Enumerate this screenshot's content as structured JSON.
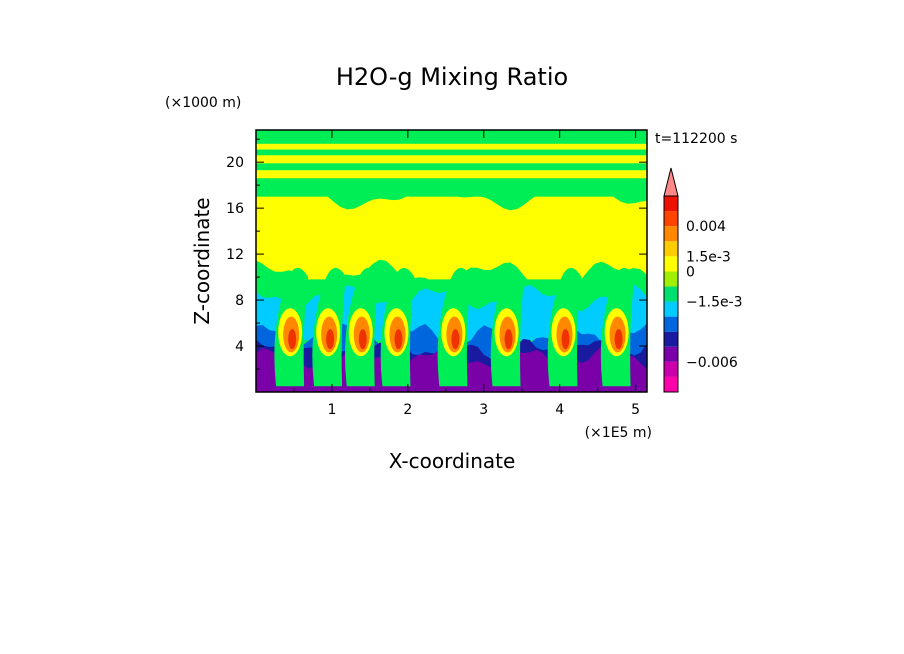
{
  "chart_data": {
    "type": "heatmap",
    "title": "H2O-g Mixing Ratio",
    "xlabel": "X-coordinate",
    "ylabel": "Z-coordinate",
    "x_unit": "(×1E5 m)",
    "y_unit": "(×1000 m)",
    "time_label": "t=112200 s",
    "xlim": [
      0,
      5.15
    ],
    "ylim": [
      0,
      22.8
    ],
    "x_ticks": [
      1,
      2,
      3,
      4,
      5
    ],
    "x_tick_labels": [
      "1",
      "2",
      "3",
      "4",
      "5"
    ],
    "y_ticks": [
      4,
      8,
      12,
      16,
      20
    ],
    "y_tick_labels": [
      "4",
      "8",
      "12",
      "16",
      "20"
    ],
    "colorbar": {
      "colors": [
        "#ff00aa",
        "#cc00aa",
        "#7a00a8",
        "#1a1aa0",
        "#0066dd",
        "#00ccff",
        "#00e070",
        "#a0ee00",
        "#ffff00",
        "#ffcc00",
        "#ff8800",
        "#ff4400",
        "#ee1100",
        "#ff8888"
      ],
      "labels": [
        {
          "text": "0.004",
          "level": 11
        },
        {
          "text": "1.5e-3",
          "level": 9
        },
        {
          "text": "0",
          "level": 8
        },
        {
          "text": "−1.5e-3",
          "level": 6
        },
        {
          "text": "−0.006",
          "level": 2
        }
      ]
    },
    "field_colors": {
      "purple": "#7a00a8",
      "navy": "#1a1aa0",
      "blue": "#0066dd",
      "cyan": "#00ccff",
      "green": "#00ee55",
      "yellow": "#ffff00",
      "orange": "#ff8800",
      "red": "#ee3300"
    },
    "cores_x": [
      0.45,
      0.95,
      1.38,
      1.85,
      2.6,
      3.3,
      4.05,
      4.75
    ]
  }
}
